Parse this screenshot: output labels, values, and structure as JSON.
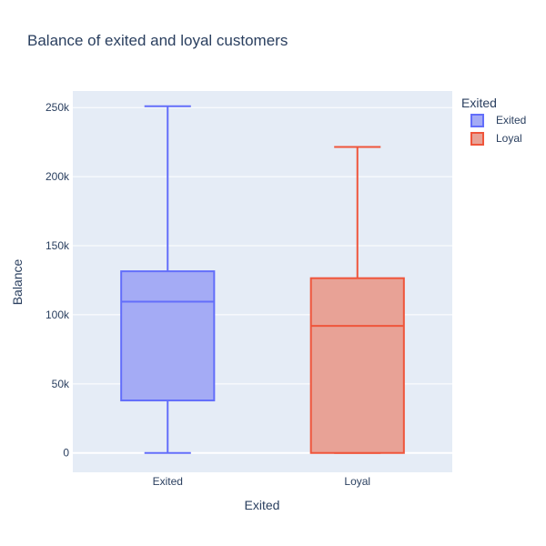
{
  "chart_data": {
    "type": "box",
    "title": "Balance of exited and loyal customers",
    "xlabel": "Exited",
    "ylabel": "Balance",
    "ylim": [
      -14000,
      262000
    ],
    "yticks": [
      0,
      50000,
      100000,
      150000,
      200000,
      250000
    ],
    "ytick_labels": [
      "0",
      "50k",
      "100k",
      "150k",
      "200k",
      "250k"
    ],
    "categories": [
      "Exited",
      "Loyal"
    ],
    "legend": {
      "title": "Exited",
      "position": "top-right"
    },
    "grid": true,
    "series": [
      {
        "name": "Exited",
        "color": "#636efa",
        "fill": "#a4abf5",
        "min": 0,
        "q1": 38000,
        "median": 109500,
        "q3": 131500,
        "max": 251000
      },
      {
        "name": "Loyal",
        "color": "#ef553b",
        "fill": "#e8a296",
        "min": 0,
        "q1": 0,
        "median": 92000,
        "q3": 126500,
        "max": 221500
      }
    ]
  }
}
